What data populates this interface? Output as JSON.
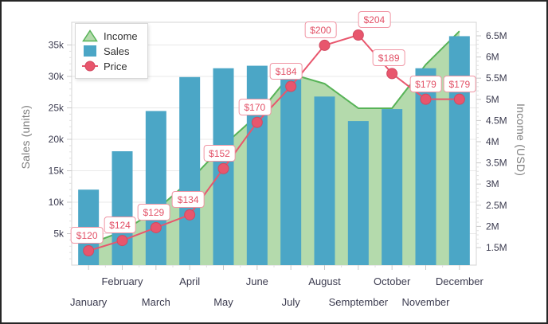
{
  "colors": {
    "bar": "#4ba6c6",
    "area_fill": "#b4daac",
    "area_line": "#57b357",
    "price_line": "#e8566d",
    "price_marker_stroke": "#d14a61",
    "price_label_text": "#e25167",
    "price_label_border": "#f095a4",
    "grid": "#e9e9e9",
    "axis_line": "#d4d4d4",
    "tick": "#c9c9c9",
    "minor_tick": "#e0e0e0",
    "tick_text": "#3b3b4f",
    "axis_title_text": "#7e7e7e",
    "legend_text": "#333333",
    "frame_border": "#262626",
    "background": "#ffffff"
  },
  "legend": {
    "items": [
      {
        "label": "Income",
        "marker": "area-triangle-icon"
      },
      {
        "label": "Sales",
        "marker": "bar-square-icon"
      },
      {
        "label": "Price",
        "marker": "line-circle-icon"
      }
    ]
  },
  "chart_data": {
    "type": "combo",
    "title": "",
    "categories": [
      "January",
      "February",
      "March",
      "April",
      "May",
      "June",
      "July",
      "August",
      "Semptember",
      "October",
      "November",
      "December"
    ],
    "series": [
      {
        "name": "Income",
        "type": "area",
        "axis": "income",
        "values": [
          1580000,
          1880000,
          2380000,
          3080000,
          3910000,
          4620000,
          5600000,
          5370000,
          4790000,
          4790000,
          5820000,
          6610000
        ]
      },
      {
        "name": "Sales",
        "type": "bar",
        "axis": "sales",
        "values": [
          12000,
          18100,
          24500,
          29900,
          31300,
          31700,
          30400,
          26800,
          22900,
          24800,
          31300,
          36400
        ]
      },
      {
        "name": "Price",
        "type": "line",
        "axis": "price",
        "values": [
          120,
          124,
          129,
          134,
          152,
          170,
          184,
          200,
          204,
          189,
          179,
          179
        ],
        "point_labels": [
          "$120",
          "$124",
          "$129",
          "$134",
          "$152",
          "$170",
          "$184",
          "$200",
          "$204",
          "$189",
          "$179",
          "$179"
        ]
      }
    ],
    "sales_axis": {
      "title": "Sales (units)",
      "position": "left",
      "range": [
        0,
        38000
      ],
      "ticks": [
        {
          "v": 5000,
          "label": "5k"
        },
        {
          "v": 10000,
          "label": "10k"
        },
        {
          "v": 15000,
          "label": "15k"
        },
        {
          "v": 20000,
          "label": "20k"
        },
        {
          "v": 25000,
          "label": "25k"
        },
        {
          "v": 30000,
          "label": "30k"
        },
        {
          "v": 35000,
          "label": "35k"
        }
      ],
      "minor_tick_step": 1000,
      "grid": true
    },
    "income_axis": {
      "title": "Income (USD)",
      "position": "right",
      "range": [
        1080000,
        6920000
      ],
      "ticks": [
        {
          "v": 1500000,
          "label": "1.5M"
        },
        {
          "v": 2000000,
          "label": "2M"
        },
        {
          "v": 2500000,
          "label": "2.5M"
        },
        {
          "v": 3000000,
          "label": "3M"
        },
        {
          "v": 3500000,
          "label": "3.5M"
        },
        {
          "v": 4000000,
          "label": "4M"
        },
        {
          "v": 4500000,
          "label": "4.5M"
        },
        {
          "v": 5000000,
          "label": "5M"
        },
        {
          "v": 5500000,
          "label": "5.5M"
        },
        {
          "v": 6000000,
          "label": "6M"
        },
        {
          "v": 6500000,
          "label": "6.5M"
        }
      ],
      "minor_tick_step": 100000,
      "grid": false
    },
    "x_axis": {
      "staggered_labels": true,
      "upper_row_indices": [
        1,
        3,
        5,
        7,
        9,
        11
      ],
      "lower_row_indices": [
        0,
        2,
        4,
        6,
        8,
        10
      ]
    },
    "legend_position": "inside-top-left"
  }
}
